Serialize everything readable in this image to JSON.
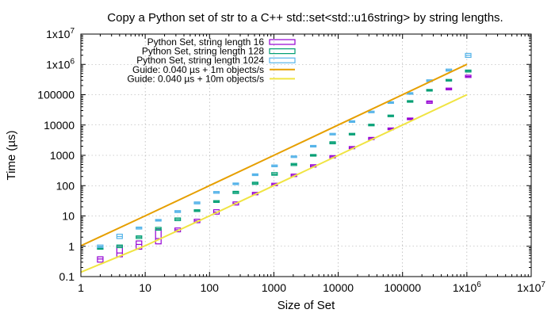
{
  "chart_data": {
    "type": "scatter",
    "title": "Copy a Python set of str to a C++ std::set<std::u16string> by string lengths.",
    "xlabel": "Size of Set",
    "ylabel": "Time (µs)",
    "xscale": "log",
    "yscale": "log",
    "xlim": [
      1,
      10000000
    ],
    "ylim": [
      0.1,
      10000000
    ],
    "grid": true,
    "legend_position": "top-left",
    "x_ticks": [
      {
        "value": 1,
        "label": "1"
      },
      {
        "value": 10,
        "label": "10"
      },
      {
        "value": 100,
        "label": "100"
      },
      {
        "value": 1000,
        "label": "1000"
      },
      {
        "value": 10000,
        "label": "10000"
      },
      {
        "value": 100000,
        "label": "100000"
      },
      {
        "value": 1000000,
        "label": "1x10"
      },
      {
        "value": 10000000,
        "label": "1x10"
      }
    ],
    "x_tick_exponents": [
      "",
      "",
      "",
      "",
      "",
      "",
      "6",
      "7"
    ],
    "y_ticks": [
      {
        "value": 0.1,
        "label": "0.1"
      },
      {
        "value": 1,
        "label": "1"
      },
      {
        "value": 10,
        "label": "10"
      },
      {
        "value": 100,
        "label": "100"
      },
      {
        "value": 1000,
        "label": "1000"
      },
      {
        "value": 10000,
        "label": "10000"
      },
      {
        "value": 100000,
        "label": "100000"
      },
      {
        "value": 1000000,
        "label": "1x10"
      },
      {
        "value": 10000000,
        "label": "1x10"
      }
    ],
    "y_tick_exponents": [
      "",
      "",
      "",
      "",
      "",
      "",
      "",
      "6",
      "7"
    ],
    "series": [
      {
        "name": "Python Set, string length 16",
        "color": "#9400d3",
        "kind": "box",
        "x": [
          2,
          4,
          8,
          16,
          32,
          64,
          128,
          256,
          512,
          1024,
          2048,
          4096,
          8192,
          16384,
          32768,
          65536,
          131072,
          262144,
          524288,
          1048576
        ],
        "y": [
          0.38,
          0.6,
          1.15,
          1.8,
          3.5,
          6.9,
          13.5,
          26,
          55,
          110,
          220,
          450,
          900,
          1800,
          3600,
          7500,
          16000,
          57000,
          155000,
          400000
        ],
        "low": [
          0.3,
          0.45,
          0.8,
          1.2,
          3.0,
          6.0,
          11.5,
          23,
          50,
          100,
          200,
          410,
          820,
          1650,
          3300,
          7000,
          15000,
          52000,
          145000,
          370000
        ],
        "high": [
          0.45,
          1.0,
          1.5,
          3.5,
          4.0,
          7.8,
          16,
          29,
          60,
          120,
          240,
          490,
          980,
          1950,
          3900,
          8000,
          17000,
          62000,
          165000,
          440000
        ]
      },
      {
        "name": "Python Set, string length 128",
        "color": "#009e73",
        "kind": "box",
        "x": [
          2,
          4,
          8,
          16,
          32,
          64,
          128,
          256,
          512,
          1024,
          2048,
          4096,
          8192,
          16384,
          32768,
          65536,
          131072,
          262144,
          524288,
          1048576
        ],
        "y": [
          0.85,
          1.0,
          2.0,
          3.8,
          7.8,
          15,
          30,
          60,
          120,
          240,
          500,
          1000,
          2600,
          5000,
          10000,
          20000,
          60000,
          140000,
          300000,
          600000
        ],
        "low": [
          0.8,
          0.9,
          1.8,
          3.4,
          7.0,
          14,
          28,
          55,
          110,
          220,
          460,
          940,
          2400,
          4700,
          9400,
          19000,
          57000,
          132000,
          285000,
          560000
        ],
        "high": [
          0.92,
          1.1,
          2.2,
          4.2,
          8.6,
          16,
          32,
          65,
          130,
          270,
          540,
          1060,
          2800,
          5300,
          10600,
          21000,
          63000,
          148000,
          315000,
          650000
        ]
      },
      {
        "name": "Python Set, string length 1024",
        "color": "#56b4e9",
        "kind": "box",
        "x": [
          2,
          4,
          8,
          16,
          32,
          64,
          128,
          256,
          512,
          1024,
          2048,
          4096,
          8192,
          16384,
          32768,
          65536,
          131072,
          262144,
          524288,
          1048576
        ],
        "y": [
          1.0,
          2.1,
          4.0,
          7.2,
          14,
          27,
          60,
          115,
          230,
          450,
          900,
          2000,
          5000,
          13000,
          27000,
          55000,
          110000,
          290000,
          650000,
          2000000
        ],
        "low": [
          0.9,
          1.8,
          3.7,
          6.8,
          13,
          25,
          56,
          108,
          215,
          420,
          850,
          1900,
          4700,
          12200,
          25500,
          52000,
          104000,
          270000,
          600000,
          1700000
        ],
        "high": [
          1.1,
          2.5,
          4.3,
          7.6,
          15,
          29,
          64,
          122,
          245,
          480,
          950,
          2100,
          5300,
          13800,
          28500,
          58000,
          116000,
          310000,
          700000,
          2300000
        ]
      },
      {
        "name": "Guide: 0.040 µs + 1m objects/s",
        "color": "#e69f00",
        "kind": "line",
        "x": [
          1,
          10,
          100,
          1000,
          10000,
          100000,
          1000000
        ],
        "y": [
          1.04,
          10.04,
          100.04,
          1000.04,
          10000.04,
          100000.04,
          1000000.04
        ]
      },
      {
        "name": "Guide: 0.040 µs + 10m objects/s",
        "color": "#f0e442",
        "kind": "line",
        "x": [
          1,
          10,
          100,
          1000,
          10000,
          100000,
          1000000
        ],
        "y": [
          0.14,
          1.04,
          10.04,
          100.04,
          1000.04,
          10000.04,
          100000.04
        ]
      }
    ]
  }
}
